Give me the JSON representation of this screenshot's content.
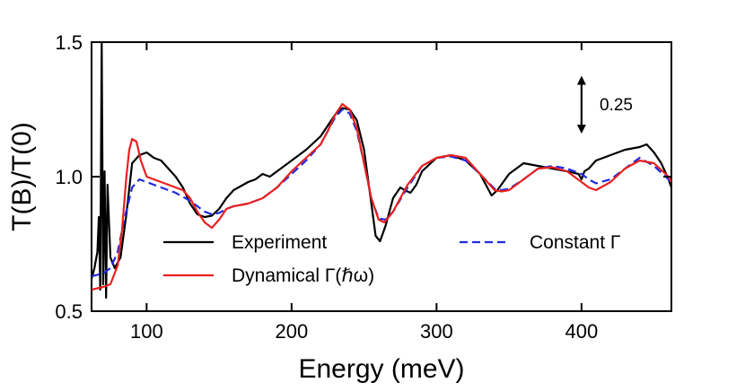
{
  "chart_data": {
    "type": "line",
    "xlabel": "Energy (meV)",
    "ylabel": "T(B)/T(0)",
    "xlim": [
      62,
      462
    ],
    "ylim": [
      0.5,
      1.5
    ],
    "x_ticks": [
      100,
      200,
      300,
      400
    ],
    "y_ticks": [
      0.5,
      1.0,
      1.5
    ],
    "x_tick_labels": [
      "100",
      "200",
      "300",
      "400"
    ],
    "y_tick_labels": [
      "0.5",
      "1.0",
      "1.5"
    ],
    "grid": false,
    "legend_position": "inside-bottom",
    "annotation": {
      "text": "0.25",
      "x": 400,
      "y_top": 1.375,
      "y_bottom": 1.16
    },
    "series": [
      {
        "name": "Experiment",
        "color": "#000000",
        "style": "solid",
        "x": [
          62,
          64,
          66,
          67,
          68,
          69,
          70,
          71,
          72,
          73,
          75,
          78,
          82,
          86,
          90,
          95,
          100,
          105,
          110,
          115,
          120,
          125,
          130,
          135,
          140,
          145,
          150,
          155,
          160,
          170,
          175,
          180,
          185,
          190,
          200,
          210,
          220,
          225,
          230,
          235,
          240,
          245,
          250,
          255,
          258,
          261,
          265,
          270,
          275,
          278,
          282,
          286,
          290,
          300,
          310,
          320,
          330,
          335,
          338,
          342,
          350,
          360,
          370,
          380,
          390,
          398,
          400,
          402,
          405,
          410,
          420,
          430,
          440,
          445,
          450,
          455,
          460,
          462
        ],
        "y": [
          0.62,
          0.66,
          0.72,
          0.85,
          0.58,
          1.5,
          0.6,
          1.02,
          0.55,
          0.97,
          0.7,
          0.66,
          0.7,
          0.86,
          1.05,
          1.08,
          1.09,
          1.07,
          1.06,
          1.03,
          1.0,
          0.96,
          0.9,
          0.86,
          0.85,
          0.855,
          0.88,
          0.92,
          0.95,
          0.98,
          0.99,
          1.01,
          1.0,
          1.02,
          1.06,
          1.1,
          1.15,
          1.19,
          1.23,
          1.255,
          1.25,
          1.21,
          1.1,
          0.9,
          0.78,
          0.76,
          0.82,
          0.92,
          0.96,
          0.95,
          0.94,
          0.97,
          1.02,
          1.07,
          1.08,
          1.06,
          1.01,
          0.96,
          0.93,
          0.95,
          1.01,
          1.05,
          1.04,
          1.03,
          1.02,
          1.01,
          0.99,
          1.02,
          1.03,
          1.06,
          1.08,
          1.1,
          1.11,
          1.12,
          1.09,
          1.05,
          0.99,
          0.96
        ]
      },
      {
        "name": "Dynamical Γ(ℏω)",
        "color": "#e8201f",
        "style": "solid",
        "x": [
          62,
          70,
          75,
          80,
          83,
          86,
          88,
          90,
          93,
          96,
          100,
          105,
          110,
          115,
          120,
          125,
          130,
          135,
          140,
          145,
          150,
          155,
          160,
          170,
          180,
          190,
          200,
          210,
          220,
          225,
          230,
          235,
          240,
          245,
          250,
          255,
          260,
          264,
          270,
          280,
          290,
          300,
          310,
          320,
          330,
          340,
          345,
          350,
          360,
          370,
          380,
          390,
          395,
          400,
          405,
          410,
          420,
          430,
          440,
          450,
          460,
          462
        ],
        "y": [
          0.58,
          0.59,
          0.6,
          0.67,
          0.8,
          1.0,
          1.1,
          1.14,
          1.13,
          1.06,
          1.0,
          0.99,
          0.98,
          0.97,
          0.96,
          0.95,
          0.92,
          0.87,
          0.83,
          0.81,
          0.84,
          0.88,
          0.89,
          0.9,
          0.92,
          0.96,
          1.02,
          1.07,
          1.12,
          1.17,
          1.23,
          1.27,
          1.25,
          1.18,
          1.05,
          0.92,
          0.84,
          0.83,
          0.87,
          0.97,
          1.04,
          1.07,
          1.08,
          1.07,
          1.01,
          0.95,
          0.945,
          0.95,
          0.99,
          1.03,
          1.035,
          1.02,
          1.0,
          0.98,
          0.96,
          0.95,
          0.98,
          1.03,
          1.06,
          1.05,
          1.0,
          0.98
        ]
      },
      {
        "name": "Constant Γ",
        "color": "#1f2be0",
        "style": "dashed",
        "x": [
          62,
          70,
          75,
          80,
          85,
          90,
          95,
          100,
          110,
          120,
          130,
          135,
          140,
          145,
          150,
          155,
          160,
          170,
          180,
          190,
          200,
          210,
          220,
          225,
          230,
          235,
          240,
          245,
          250,
          255,
          260,
          265,
          270,
          280,
          290,
          300,
          310,
          320,
          330,
          340,
          345,
          350,
          360,
          370,
          380,
          390,
          400,
          405,
          410,
          420,
          430,
          440,
          450,
          460,
          462
        ],
        "y": [
          0.63,
          0.64,
          0.66,
          0.72,
          0.85,
          0.96,
          0.99,
          0.98,
          0.96,
          0.94,
          0.91,
          0.89,
          0.87,
          0.86,
          0.865,
          0.88,
          0.89,
          0.9,
          0.92,
          0.96,
          1.01,
          1.06,
          1.12,
          1.17,
          1.22,
          1.25,
          1.235,
          1.17,
          1.05,
          0.92,
          0.845,
          0.84,
          0.87,
          0.96,
          1.04,
          1.07,
          1.075,
          1.06,
          1.01,
          0.955,
          0.95,
          0.955,
          0.99,
          1.03,
          1.04,
          1.03,
          1.01,
          0.99,
          0.975,
          0.99,
          1.03,
          1.07,
          1.04,
          0.99,
          0.97
        ]
      }
    ]
  }
}
